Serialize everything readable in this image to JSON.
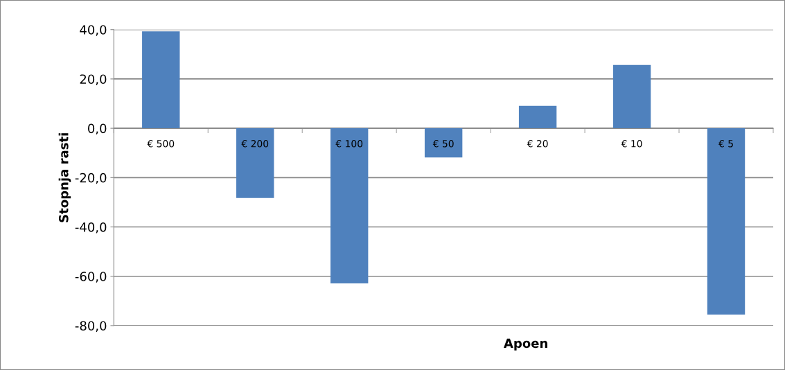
{
  "chart_data": {
    "type": "bar",
    "xlabel": "Apoen",
    "ylabel": "Stopnja rasti",
    "categories": [
      "€ 500",
      "€ 200",
      "€ 100",
      "€ 50",
      "€ 20",
      "€ 10",
      "€ 5"
    ],
    "values": [
      39.3,
      -28.3,
      -62.9,
      -11.8,
      9.1,
      25.7,
      -75.5
    ],
    "color": "#4f81bd",
    "ylim": [
      -80,
      40
    ],
    "yticks": [
      {
        "value": -80,
        "label": "-80,0"
      },
      {
        "value": -60,
        "label": "-60,0"
      },
      {
        "value": -40,
        "label": "-40,0"
      },
      {
        "value": -20,
        "label": "-20,0"
      },
      {
        "value": 0,
        "label": "0,0"
      },
      {
        "value": 20,
        "label": "20,0"
      },
      {
        "value": 40,
        "label": "40,0"
      }
    ],
    "grid": "y"
  }
}
